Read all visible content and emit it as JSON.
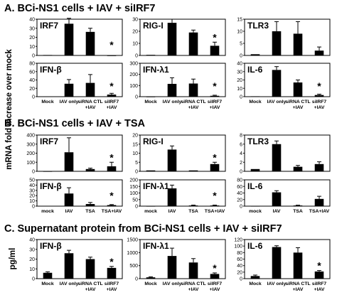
{
  "sections": {
    "A": "A. BCi-NS1 cells + IAV + siIRF7",
    "B": "B. BCi-NS1 cells + IAV + TSA",
    "C": "C. Supernatant protein from BCi-NS1 cells + IAV + siIRF7"
  },
  "y_titles": {
    "mrna": "mRNA fold increase over mock",
    "protein": "pg/ml"
  },
  "chart_data": [
    {
      "id": "A-IRF7",
      "type": "bar",
      "title": "IRF7",
      "categories": [
        "",
        "",
        "",
        ""
      ],
      "values": [
        0.5,
        35,
        26,
        0
      ],
      "errors": [
        0,
        6,
        4,
        0
      ],
      "ylim": [
        0,
        40
      ],
      "yticks": [
        0,
        10,
        20,
        30,
        40
      ],
      "star": 3
    },
    {
      "id": "A-RIG-I",
      "type": "bar",
      "title": "RIG-I",
      "categories": [
        "",
        "",
        "",
        ""
      ],
      "values": [
        0.5,
        27,
        19,
        8
      ],
      "errors": [
        0,
        3,
        2,
        3
      ],
      "ylim": [
        0,
        30
      ],
      "yticks": [
        0,
        10,
        20,
        30
      ],
      "star": 3
    },
    {
      "id": "A-TLR3",
      "type": "bar",
      "title": "TLR3",
      "categories": [
        "",
        "",
        "",
        ""
      ],
      "values": [
        0.5,
        10,
        9,
        2
      ],
      "errors": [
        0,
        4,
        5,
        1.5
      ],
      "ylim": [
        0,
        15
      ],
      "yticks": [
        0,
        5,
        10,
        15
      ],
      "star": null
    },
    {
      "id": "A-IFN-b",
      "type": "bar",
      "title": "IFN-β",
      "categories": [
        "Mock",
        "IAV only",
        "siRNA CTL\n+IAV",
        "siIRF7\n+IAV"
      ],
      "values": [
        0.5,
        31,
        33,
        5
      ],
      "errors": [
        0,
        10,
        20,
        3
      ],
      "ylim": [
        0,
        80
      ],
      "yticks": [
        0,
        20,
        40,
        60,
        80
      ],
      "star": 3
    },
    {
      "id": "A-IFN-l1",
      "type": "bar",
      "title": "IFN-λ1",
      "categories": [
        "Mock",
        "IAV only",
        "siRNA CTL\n+IAV",
        "siIRF7\n+IAV"
      ],
      "values": [
        0.5,
        115,
        118,
        8
      ],
      "errors": [
        0,
        55,
        40,
        5
      ],
      "ylim": [
        0,
        300
      ],
      "yticks": [
        0,
        100,
        200,
        300
      ],
      "star": 3
    },
    {
      "id": "A-IL-6",
      "type": "bar",
      "title": "IL-6",
      "categories": [
        "Mock",
        "IAV only",
        "siRNA CTL\n+IAV",
        "siIRF7\n+IAV"
      ],
      "values": [
        0.5,
        32,
        17,
        2
      ],
      "errors": [
        0,
        4,
        3,
        1
      ],
      "ylim": [
        0,
        40
      ],
      "yticks": [
        0,
        10,
        20,
        30,
        40
      ],
      "star": 3
    },
    {
      "id": "B-IRF7",
      "type": "bar",
      "title": "IRF7",
      "categories": [
        "",
        "",
        "",
        ""
      ],
      "values": [
        1,
        210,
        25,
        55
      ],
      "errors": [
        0,
        160,
        10,
        45
      ],
      "ylim": [
        0,
        400
      ],
      "yticks": [
        0,
        100,
        200,
        300,
        400
      ],
      "star": 3
    },
    {
      "id": "B-RIG-I",
      "type": "bar",
      "title": "RIG-I",
      "categories": [
        "",
        "",
        "",
        ""
      ],
      "values": [
        0.5,
        12,
        0.5,
        4
      ],
      "errors": [
        0,
        2,
        0,
        1
      ],
      "ylim": [
        0,
        20
      ],
      "yticks": [
        0,
        5,
        10,
        15,
        20
      ],
      "star": 3
    },
    {
      "id": "B-TLR3",
      "type": "bar",
      "title": "TLR3",
      "categories": [
        "",
        "",
        "",
        ""
      ],
      "values": [
        0.5,
        6,
        1,
        1.6
      ],
      "errors": [
        0,
        0.7,
        0.3,
        0.5
      ],
      "ylim": [
        0,
        8
      ],
      "yticks": [
        0,
        2,
        4,
        6,
        8
      ],
      "star": null
    },
    {
      "id": "B-IFN-b",
      "type": "bar",
      "title": "IFN-β",
      "categories": [
        "mock",
        "IAV",
        "TSA",
        "TSA+IAV"
      ],
      "values": [
        0.5,
        24,
        4,
        2
      ],
      "errors": [
        0,
        11,
        3,
        1
      ],
      "ylim": [
        0,
        50
      ],
      "yticks": [
        0,
        10,
        20,
        30,
        40,
        50
      ],
      "star": 3
    },
    {
      "id": "B-IFN-l1",
      "type": "bar",
      "title": "IFN-λ1",
      "categories": [
        "mock",
        "IAV",
        "TSA",
        "TSA+IAV"
      ],
      "values": [
        1,
        135,
        5,
        5
      ],
      "errors": [
        0,
        25,
        3,
        3
      ],
      "ylim": [
        0,
        200
      ],
      "yticks": [
        0,
        50,
        100,
        150,
        200
      ],
      "star": 3
    },
    {
      "id": "B-IL-6",
      "type": "bar",
      "title": "IL-6",
      "categories": [
        "mock",
        "IAV",
        "TSA",
        "TSA+IAV"
      ],
      "values": [
        0.5,
        42,
        2,
        22
      ],
      "errors": [
        0,
        5,
        1,
        8
      ],
      "ylim": [
        0,
        80
      ],
      "yticks": [
        0,
        20,
        40,
        60,
        80
      ],
      "star": null
    },
    {
      "id": "C-IFN-b",
      "type": "bar",
      "title": "IFN-β",
      "categories": [
        "Mock",
        "IAV only",
        "siRNA CTL\n+IAV",
        "siIRF7\n+IAV"
      ],
      "values": [
        6,
        26,
        20,
        11
      ],
      "errors": [
        1,
        3,
        2,
        1.5
      ],
      "ylim": [
        0,
        40
      ],
      "yticks": [
        0,
        10,
        20,
        30,
        40
      ],
      "star": 3
    },
    {
      "id": "C-IFN-l1",
      "type": "bar",
      "title": "IFN-λ1",
      "categories": [
        "Mock",
        "IAV only",
        "siRNA CTL\n+IAV",
        "siIRF7\n+IAV"
      ],
      "values": [
        50,
        870,
        620,
        180
      ],
      "errors": [
        20,
        300,
        150,
        40
      ],
      "ylim": [
        0,
        1500
      ],
      "yticks": [
        0,
        500,
        1000,
        1500
      ],
      "star": 3
    },
    {
      "id": "C-IL-6",
      "type": "bar",
      "title": "IL-6",
      "categories": [
        "Mock",
        "IAV only",
        "siRNA CTL\n+IAV",
        "siIRF7\n+IAV"
      ],
      "values": [
        8,
        97,
        80,
        22
      ],
      "errors": [
        3,
        4,
        15,
        3
      ],
      "ylim": [
        0,
        120
      ],
      "yticks": [
        0,
        20,
        40,
        60,
        80,
        100,
        120
      ],
      "star": 3
    }
  ]
}
